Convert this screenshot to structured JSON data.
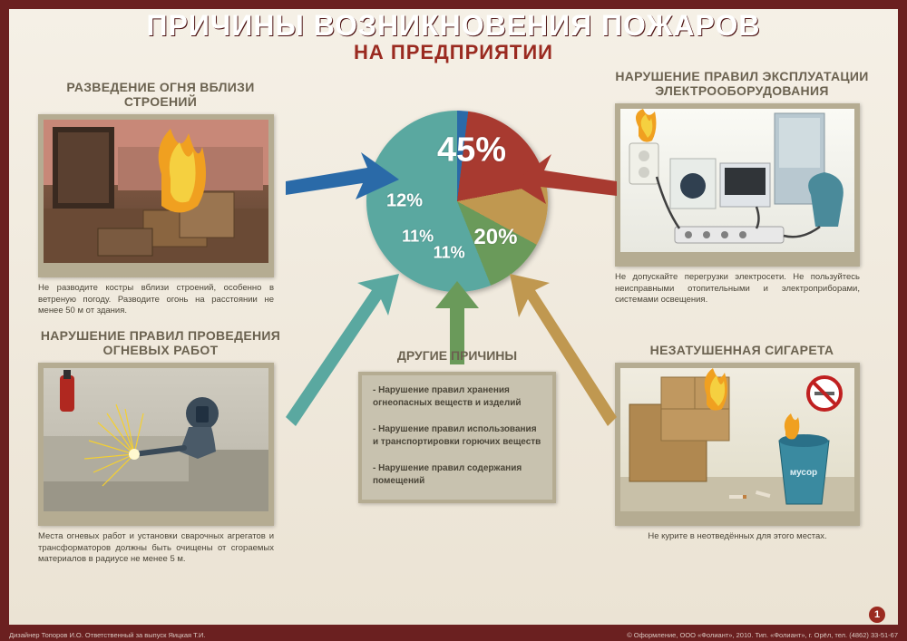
{
  "title": "ПРИЧИНЫ ВОЗНИКНОВЕНИЯ ПОЖАРОВ",
  "subtitle": "НА ПРЕДПРИЯТИИ",
  "panels": {
    "top_left": {
      "heading": "РАЗВЕДЕНИЕ ОГНЯ ВБЛИЗИ СТРОЕНИЙ",
      "caption": "Не разводите костры вблизи строений, особенно в ветреную погоду. Разводите огонь на расстоянии не менее 50 м от здания."
    },
    "top_right": {
      "heading": "НАРУШЕНИЕ ПРАВИЛ ЭКСПЛУАТАЦИИ ЭЛЕКТРООБОРУДОВАНИЯ",
      "caption": "Не допускайте перегрузки электросети. Не пользуйтесь неисправными отопительными и электроприборами, системами освещения."
    },
    "bottom_left": {
      "heading": "НАРУШЕНИЕ ПРАВИЛ ПРОВЕДЕНИЯ ОГНЕВЫХ РАБОТ",
      "caption": "Места огневых работ и установки сварочных агрегатов и трансформаторов должны быть очищены от сгораемых материалов в радиусе не менее 5 м."
    },
    "bottom_right": {
      "heading": "НЕЗАТУШЕННАЯ СИГАРЕТА",
      "caption": "Не курите в неотведённых для этого местах."
    }
  },
  "other_reasons": {
    "title": "ДРУГИЕ ПРИЧИНЫ",
    "items": [
      "- Нарушение правил хранения огнеопасных веществ и изделий",
      "- Нарушение правил использования и транспортировки горючих веществ",
      "- Нарушение правил содержания помещений"
    ]
  },
  "pie": {
    "type": "pie",
    "slices": [
      {
        "label": "45%",
        "value": 45,
        "color": "#2a6aa8",
        "label_fontsize": 38
      },
      {
        "label": "20%",
        "value": 20,
        "color": "#a83a30",
        "label_fontsize": 24
      },
      {
        "label": "11%",
        "value": 11,
        "color": "#c09850",
        "label_fontsize": 18
      },
      {
        "label": "11%",
        "value": 11,
        "color": "#6a9a5a",
        "label_fontsize": 18
      },
      {
        "label": "12%",
        "value": 12,
        "color": "#5aa8a0",
        "label_fontsize": 20
      }
    ],
    "start_angle_deg": -155,
    "background": "#f0ece0"
  },
  "arrows": {
    "colors": {
      "blue": "#2a6aa8",
      "red": "#a83a30",
      "yellow": "#c09850",
      "green": "#6a9a5a",
      "teal": "#5aa8a0"
    }
  },
  "page_number": "1",
  "footer_left": "Дизайнер Топоров И.О. Ответственный за выпуск Яицкая Т.И.",
  "footer_right": "© Оформление, ООО «Фолиант», 2010. Тип. «Фолиант», г. Орёл, тел. (4862) 33-51-67",
  "trash_label": "мусор"
}
